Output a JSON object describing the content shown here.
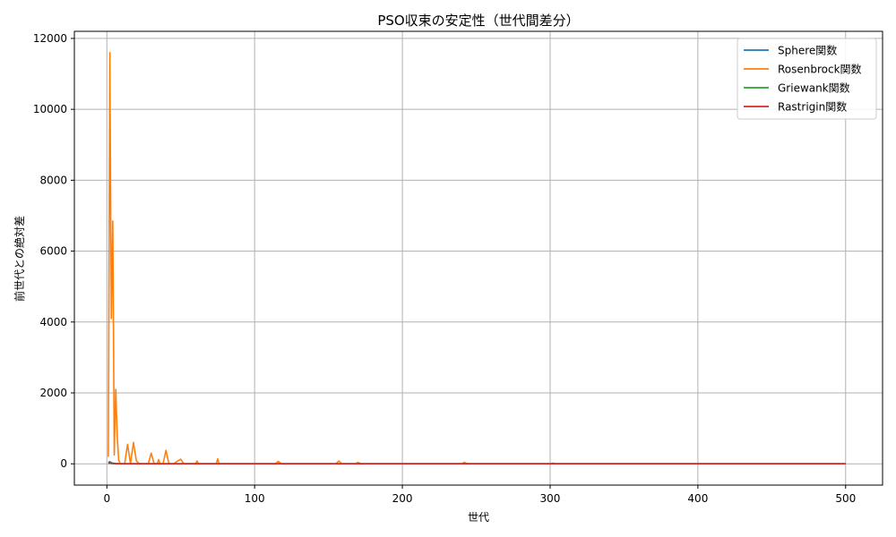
{
  "chart_data": {
    "type": "line",
    "title": "PSO収束の安定性（世代間差分）",
    "xlabel": "世代",
    "ylabel": "前世代との絶対差",
    "xlim": [
      -22,
      525
    ],
    "ylim": [
      -600,
      12200
    ],
    "xticks": [
      0,
      100,
      200,
      300,
      400,
      500
    ],
    "yticks": [
      0,
      2000,
      4000,
      6000,
      8000,
      10000,
      12000
    ],
    "grid": true,
    "legend_position": "top-right",
    "series": [
      {
        "name": "Sphere関数",
        "color": "#1f77b4",
        "x": [
          1,
          2,
          3,
          4,
          5,
          6,
          8,
          10,
          15,
          20,
          50,
          100,
          200,
          300,
          400,
          500
        ],
        "y": [
          40,
          60,
          30,
          20,
          15,
          10,
          5,
          3,
          1,
          0.5,
          0,
          0,
          0,
          0,
          0,
          0
        ]
      },
      {
        "name": "Rosenbrock関数",
        "color": "#ff7f0e",
        "x": [
          1,
          2,
          3,
          4,
          5,
          6,
          7,
          8,
          9,
          10,
          12,
          14,
          16,
          18,
          20,
          22,
          25,
          28,
          30,
          32,
          34,
          35,
          36,
          38,
          40,
          42,
          45,
          50,
          52,
          55,
          60,
          61,
          62,
          65,
          74,
          75,
          76,
          80,
          100,
          114,
          116,
          118,
          130,
          155,
          157,
          159,
          168,
          170,
          172,
          200,
          240,
          242,
          244,
          300,
          302,
          304,
          320,
          360,
          400,
          450,
          500
        ],
        "y": [
          200,
          11600,
          4100,
          6850,
          250,
          2100,
          800,
          100,
          10,
          0,
          0,
          550,
          0,
          600,
          80,
          0,
          0,
          0,
          300,
          0,
          0,
          120,
          0,
          0,
          380,
          0,
          0,
          130,
          0,
          0,
          0,
          80,
          0,
          0,
          0,
          140,
          0,
          0,
          0,
          0,
          70,
          0,
          0,
          0,
          80,
          0,
          0,
          40,
          0,
          0,
          0,
          40,
          0,
          0,
          20,
          0,
          0,
          0,
          0,
          0,
          0
        ]
      },
      {
        "name": "Griewank関数",
        "color": "#2ca02c",
        "x": [
          1,
          2,
          3,
          5,
          10,
          20,
          50,
          100,
          200,
          300,
          400,
          500
        ],
        "y": [
          10,
          20,
          8,
          3,
          1,
          0,
          0,
          0,
          0,
          0,
          0,
          0
        ]
      },
      {
        "name": "Rastrigin関数",
        "color": "#d62728",
        "x": [
          1,
          2,
          3,
          4,
          5,
          6,
          8,
          10,
          15,
          20,
          30,
          50,
          100,
          200,
          300,
          400,
          500
        ],
        "y": [
          20,
          30,
          15,
          10,
          8,
          5,
          3,
          2,
          1,
          1,
          0.5,
          0,
          0,
          0,
          0,
          0,
          0
        ]
      }
    ]
  }
}
